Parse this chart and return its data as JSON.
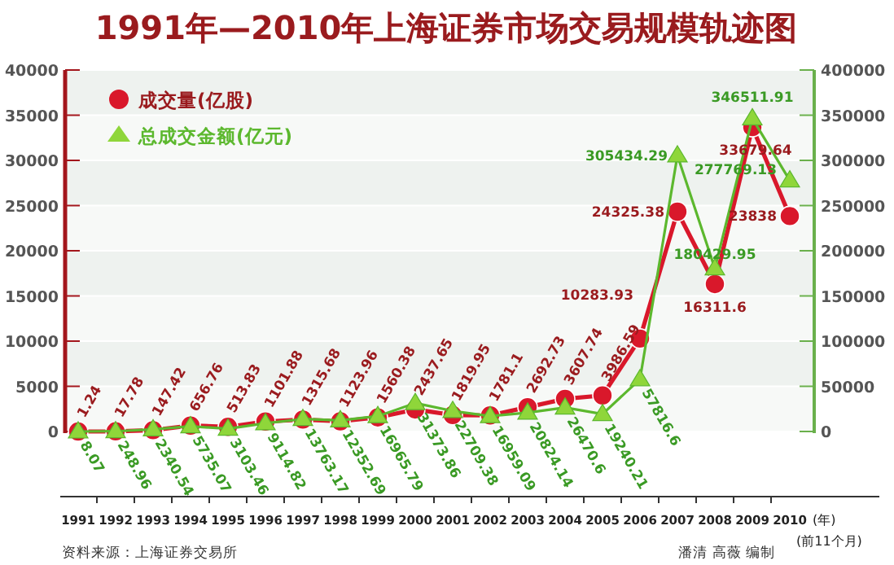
{
  "chart_data": {
    "type": "line",
    "title": "1991年—2010年上海证券市场交易规模轨迹图",
    "xlabel": "(年)",
    "categories": [
      "1991",
      "1992",
      "1993",
      "1994",
      "1995",
      "1996",
      "1997",
      "1998",
      "1999",
      "2000",
      "2001",
      "2002",
      "2003",
      "2004",
      "2005",
      "2006",
      "2007",
      "2008",
      "2009",
      "2010"
    ],
    "series": [
      {
        "name": "成交量(亿股)",
        "color": "#d9182b",
        "marker": "circle",
        "values": [
          1.24,
          17.78,
          147.42,
          656.76,
          513.83,
          1101.88,
          1315.68,
          1123.96,
          1560.38,
          2437.65,
          1819.95,
          1781.1,
          2692.73,
          3607.74,
          3986.59,
          10283.93,
          24325.38,
          16311.6,
          33679.64,
          23838
        ]
      },
      {
        "name": "总成交金额(亿元)",
        "color": "#5cb82e",
        "marker": "triangle",
        "axis": "y2",
        "values": [
          8.07,
          248.96,
          2340.54,
          5735.07,
          3103.46,
          9114.82,
          13763.17,
          12352.69,
          16965.79,
          31373.86,
          22709.38,
          16959.09,
          20824.14,
          26470.6,
          19240.21,
          57816.6,
          305434.29,
          180429.95,
          346511.91,
          277769.13
        ]
      }
    ],
    "ylim": [
      0,
      40000
    ],
    "yticks": [
      0,
      5000,
      10000,
      15000,
      20000,
      25000,
      30000,
      35000,
      40000
    ],
    "y2lim": [
      0,
      400000
    ],
    "y2ticks": [
      0,
      50000,
      100000,
      150000,
      200000,
      250000,
      300000,
      350000,
      400000
    ],
    "grid": "y",
    "legend": "top left",
    "data_labels": true,
    "annotations": [
      "(前11个月)",
      "资料来源：上海证券交易所",
      "潘清 高薇 编制"
    ]
  }
}
